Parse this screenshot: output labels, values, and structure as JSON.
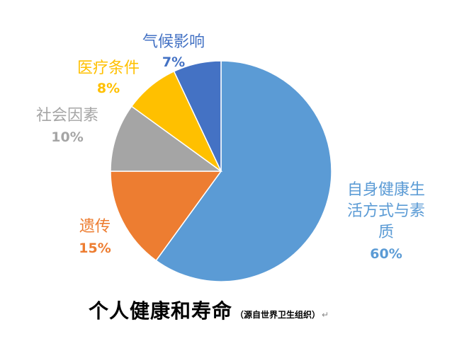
{
  "chart_data": {
    "type": "pie",
    "title": "个人健康和寿命",
    "source_note": "（源自世界卫生组织）",
    "paragraph_mark": "↵",
    "slices": [
      {
        "label_lines": [
          "自身健康生",
          "活方式与素",
          "质"
        ],
        "value": 60,
        "value_label": "60%",
        "color": "#5B9BD5"
      },
      {
        "label_lines": [
          "遗传"
        ],
        "value": 15,
        "value_label": "15%",
        "color": "#ED7D31"
      },
      {
        "label_lines": [
          "社会因素"
        ],
        "value": 10,
        "value_label": "10%",
        "color": "#A5A5A5"
      },
      {
        "label_lines": [
          "医疗条件"
        ],
        "value": 8,
        "value_label": "8%",
        "color": "#FFC000"
      },
      {
        "label_lines": [
          "气候影响"
        ],
        "value": 7,
        "value_label": "7%",
        "color": "#4472C4"
      }
    ]
  }
}
